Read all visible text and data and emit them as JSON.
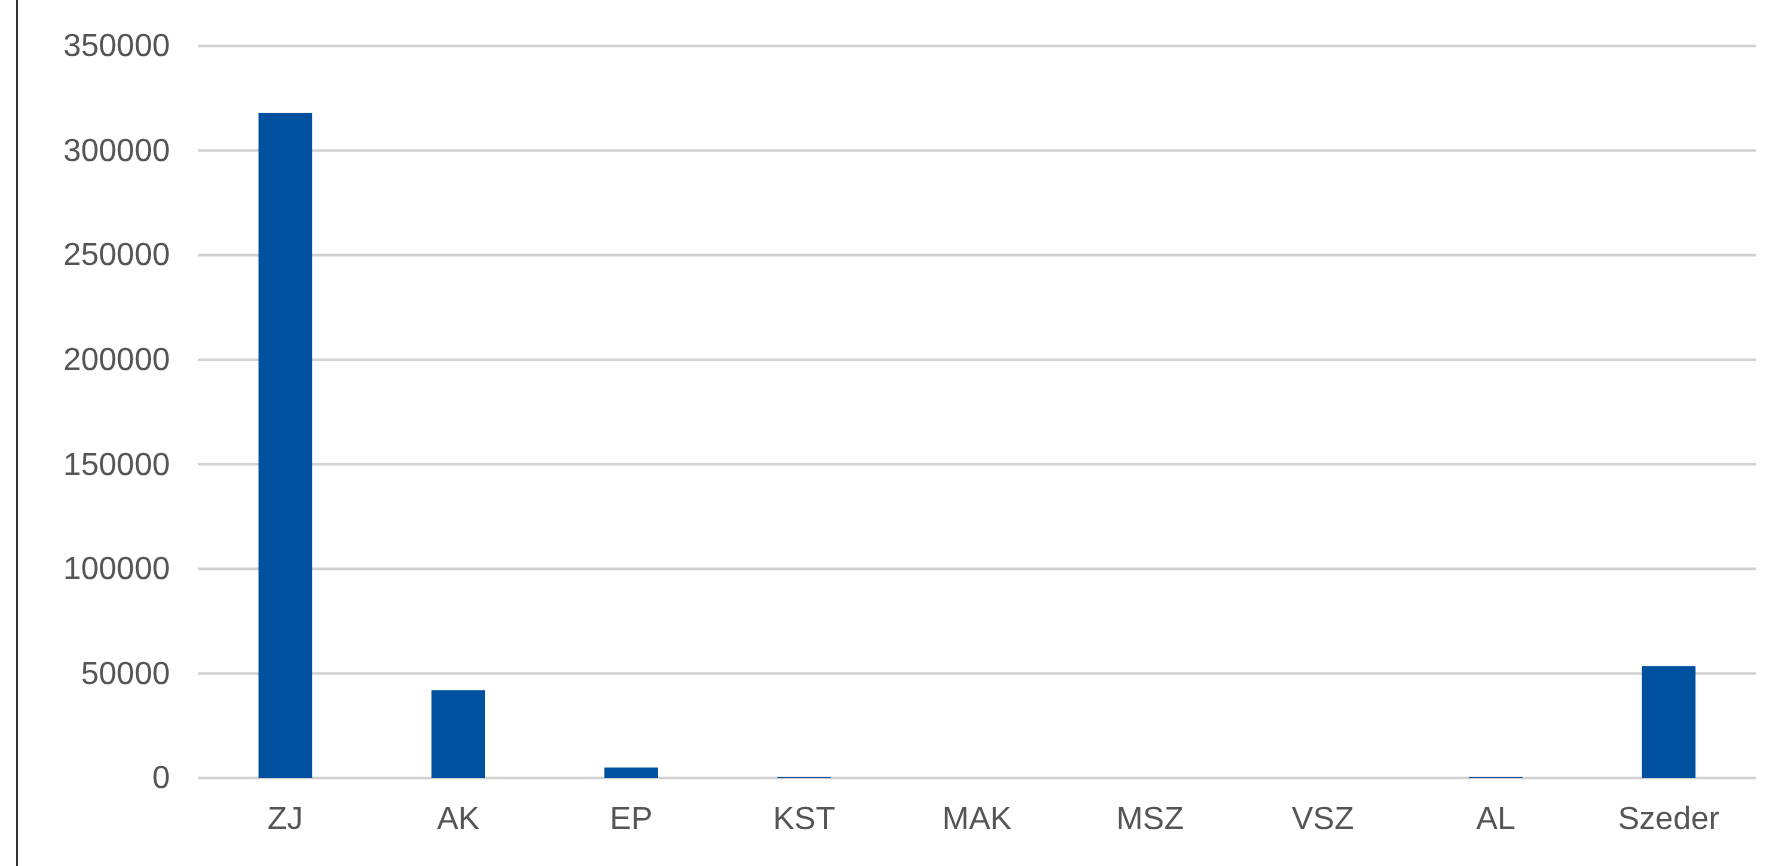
{
  "chart_data": {
    "type": "bar",
    "categories": [
      "ZJ",
      "AK",
      "EP",
      "KST",
      "MAK",
      "MSZ",
      "VSZ",
      "AL",
      "Szeder"
    ],
    "values": [
      318000,
      42000,
      5000,
      500,
      0,
      0,
      0,
      500,
      53500
    ],
    "color": "#0050a0",
    "ylim": [
      0,
      350000
    ],
    "yticks": [
      0,
      50000,
      100000,
      150000,
      200000,
      250000,
      300000,
      350000
    ],
    "grid": "y"
  }
}
